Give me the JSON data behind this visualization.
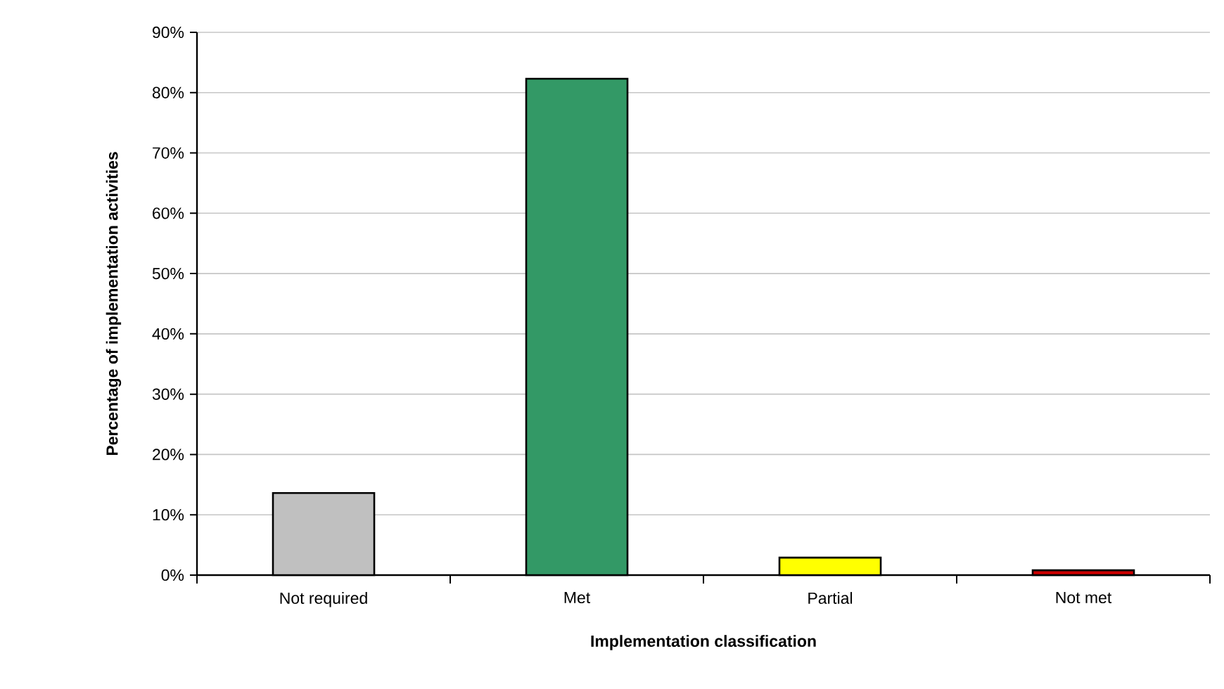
{
  "chart_data": {
    "type": "bar",
    "categories": [
      "Not required",
      "Met",
      "Partial",
      "Not met"
    ],
    "values": [
      13.6,
      82.3,
      2.9,
      0.8
    ],
    "colors": [
      "#c0c0c0",
      "#339966",
      "#ffff00",
      "#cc0000"
    ],
    "xlabel": "Implementation classification",
    "ylabel": "Percentage of implementation activities",
    "ylim": [
      0,
      90
    ],
    "yticks": [
      {
        "value": 0,
        "label": "0%"
      },
      {
        "value": 10,
        "label": "10%"
      },
      {
        "value": 20,
        "label": "20%"
      },
      {
        "value": 30,
        "label": "30%"
      },
      {
        "value": 40,
        "label": "40%"
      },
      {
        "value": 50,
        "label": "50%"
      },
      {
        "value": 60,
        "label": "60%"
      },
      {
        "value": 70,
        "label": "70%"
      },
      {
        "value": 80,
        "label": "80%"
      },
      {
        "value": 90,
        "label": "90%"
      }
    ],
    "grid": "y"
  }
}
